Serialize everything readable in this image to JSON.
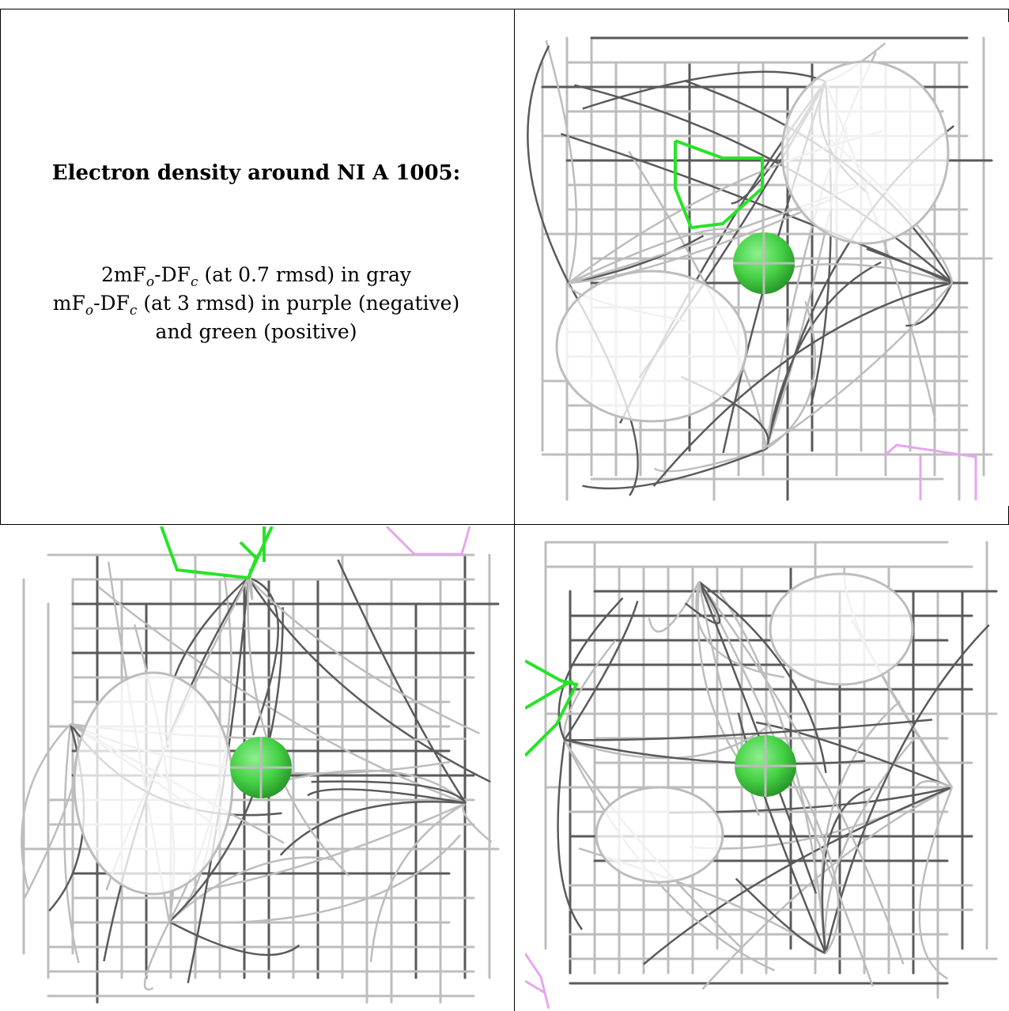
{
  "caption": {
    "title": "Electron density around NI A 1005:",
    "line1": {
      "pre": "2mF",
      "sub1": "o",
      "mid": "-DF",
      "sub2": "c",
      "post": " (at 0.7 rmsd) in gray"
    },
    "line2": {
      "pre": "mF",
      "sub1": "o",
      "mid": "-DF",
      "sub2": "c",
      "post": " (at 3 rmsd) in purple (negative)"
    },
    "line3": "and green (positive)"
  },
  "colors": {
    "density_2fofc": "#bdbdbd",
    "density_dark": "#5a5a5a",
    "diff_negative": "#e6a6ef",
    "diff_positive": "#27e327",
    "atom": "#45d145"
  },
  "panels": [
    {
      "view": "top-right",
      "atom": "NI"
    },
    {
      "view": "bottom-left",
      "atom": "NI"
    },
    {
      "view": "bottom-right",
      "atom": "NI"
    }
  ]
}
